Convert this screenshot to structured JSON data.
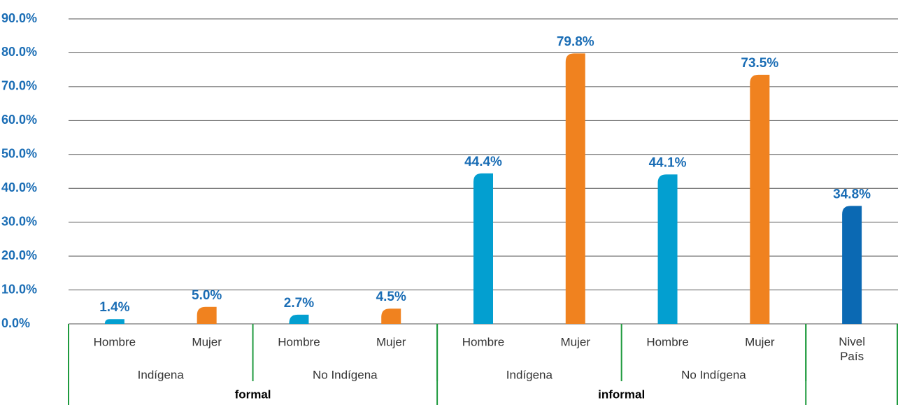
{
  "chart_data": {
    "type": "bar",
    "categories": [
      "Hombre",
      "Mujer",
      "Hombre",
      "Mujer",
      "Hombre",
      "Mujer",
      "Hombre",
      "Mujer",
      "Nivel País"
    ],
    "groups": [
      {
        "label": "Indígena",
        "count": 2
      },
      {
        "label": "No Indígena",
        "count": 2
      },
      {
        "label": "Indígena",
        "count": 2
      },
      {
        "label": "No Indígena",
        "count": 2
      }
    ],
    "supergroups": [
      {
        "label": "formal",
        "count": 4
      },
      {
        "label": "informal",
        "count": 4
      }
    ],
    "values": [
      1.4,
      5.0,
      2.7,
      4.5,
      44.4,
      79.8,
      44.1,
      73.5,
      34.8
    ],
    "value_labels": [
      "1.4%",
      "5.0%",
      "2.7%",
      "4.5%",
      "44.4%",
      "79.8%",
      "44.1%",
      "73.5%",
      "34.8%"
    ],
    "colors": [
      "#039fd0",
      "#f0821f",
      "#039fd0",
      "#f0821f",
      "#039fd0",
      "#f0821f",
      "#039fd0",
      "#f0821f",
      "#0b69b3"
    ],
    "ylim": [
      0,
      90
    ],
    "yticks": [
      {
        "value": 0,
        "label": "0.0%"
      },
      {
        "value": 10,
        "label": "10.0%"
      },
      {
        "value": 20,
        "label": "20.0%"
      },
      {
        "value": 30,
        "label": "30.0%"
      },
      {
        "value": 40,
        "label": "40.0%"
      },
      {
        "value": 50,
        "label": "50.0%"
      },
      {
        "value": 60,
        "label": "60.0%"
      },
      {
        "value": 70,
        "label": "70.0%"
      },
      {
        "value": 80,
        "label": "80.0%"
      },
      {
        "value": 90,
        "label": "90.0%"
      }
    ],
    "grid": true
  }
}
